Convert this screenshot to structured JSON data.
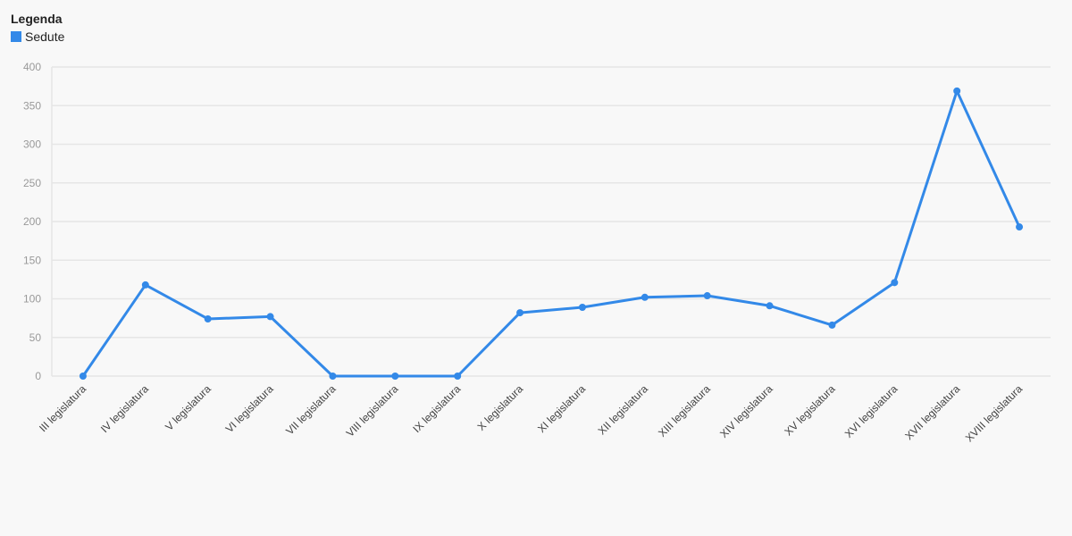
{
  "chart_data": {
    "type": "line",
    "legend_title": "Legenda",
    "categories": [
      "III legislatura",
      "IV legislatura",
      "V legislatura",
      "VI legislatura",
      "VII legislatura",
      "VIII legislatura",
      "IX legislatura",
      "X legislatura",
      "XI legislatura",
      "XII legislatura",
      "XIII legislatura",
      "XIV legislatura",
      "XV legislatura",
      "XVI legislatura",
      "XVII legislatura",
      "XVIII legislatura"
    ],
    "series": [
      {
        "name": "Sedute",
        "color": "#3389e8",
        "values": [
          0,
          118,
          74,
          77,
          0,
          0,
          0,
          82,
          89,
          102,
          104,
          91,
          66,
          121,
          369,
          193
        ]
      }
    ],
    "ylim": [
      0,
      400
    ],
    "yticks": [
      0,
      50,
      100,
      150,
      200,
      250,
      300,
      350,
      400
    ],
    "grid": true
  }
}
